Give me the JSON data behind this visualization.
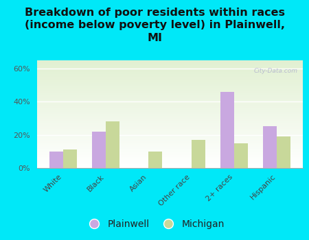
{
  "title": "Breakdown of poor residents within races\n(income below poverty level) in Plainwell,\nMI",
  "categories": [
    "White",
    "Black",
    "Asian",
    "Other race",
    "2+ races",
    "Hispanic"
  ],
  "plainwell": [
    10,
    22,
    0,
    0,
    46,
    25
  ],
  "michigan": [
    11,
    28,
    10,
    17,
    15,
    19
  ],
  "plainwell_color": "#c9a8e0",
  "michigan_color": "#c8d89a",
  "background_outer": "#00e8f8",
  "ylim": [
    0,
    65
  ],
  "yticks": [
    0,
    20,
    40,
    60
  ],
  "ytick_labels": [
    "0%",
    "20%",
    "40%",
    "60%"
  ],
  "bar_width": 0.32,
  "title_fontsize": 11.5,
  "tick_fontsize": 8,
  "legend_fontsize": 10
}
